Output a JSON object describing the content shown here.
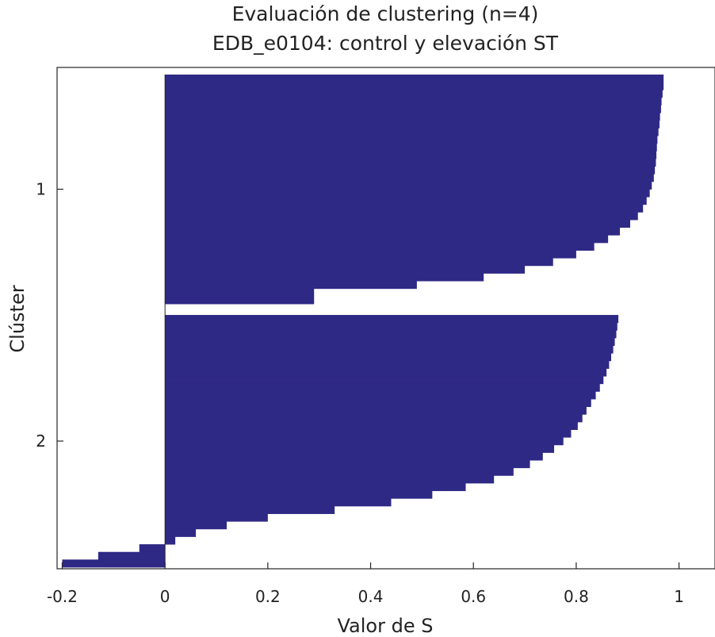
{
  "chart_data": {
    "type": "bar",
    "orientation": "horizontal",
    "title": "Evaluación de clustering (n=4)",
    "subtitle": "EDB_e0104: control y elevación ST",
    "xlabel": "Valor de S",
    "ylabel": "Clúster",
    "xlim": [
      -0.21,
      1.07
    ],
    "x_ticks": [
      -0.2,
      0,
      0.2,
      0.4,
      0.6,
      0.8,
      1
    ],
    "x_tick_labels": [
      "-0.2",
      "0",
      "0.2",
      "0.4",
      "0.6",
      "0.8",
      "1"
    ],
    "y_tick_labels": [
      "1",
      "2"
    ],
    "grid": false,
    "bar_color": "#2e2985",
    "clusters": [
      {
        "label": "1",
        "values": [
          0.97,
          0.97,
          0.968,
          0.966,
          0.965,
          0.963,
          0.962,
          0.96,
          0.958,
          0.957,
          0.956,
          0.955,
          0.953,
          0.951,
          0.947,
          0.943,
          0.937,
          0.93,
          0.92,
          0.905,
          0.885,
          0.862,
          0.835,
          0.8,
          0.755,
          0.7,
          0.62,
          0.49,
          0.29,
          0.29
        ]
      },
      {
        "label": "2",
        "values": [
          0.882,
          0.88,
          0.878,
          0.875,
          0.872,
          0.868,
          0.864,
          0.859,
          0.853,
          0.846,
          0.838,
          0.829,
          0.82,
          0.812,
          0.803,
          0.79,
          0.775,
          0.757,
          0.735,
          0.71,
          0.678,
          0.64,
          0.585,
          0.52,
          0.44,
          0.33,
          0.2,
          0.12,
          0.06,
          0.02,
          -0.05,
          -0.13,
          -0.2
        ]
      }
    ]
  }
}
